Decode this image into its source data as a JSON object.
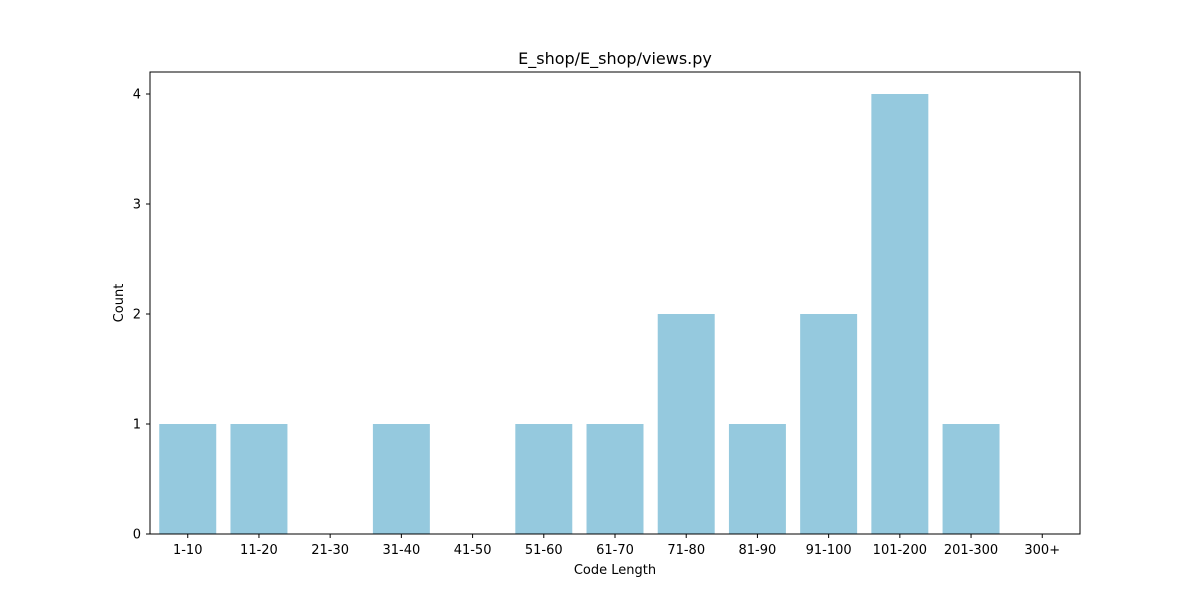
{
  "chart_data": {
    "type": "bar",
    "title": "E_shop/E_shop/views.py",
    "xlabel": "Code Length",
    "ylabel": "Count",
    "categories": [
      "1-10",
      "11-20",
      "21-30",
      "31-40",
      "41-50",
      "51-60",
      "61-70",
      "71-80",
      "81-90",
      "91-100",
      "101-200",
      "201-300",
      "300+"
    ],
    "values": [
      1,
      1,
      0,
      1,
      0,
      1,
      1,
      2,
      1,
      2,
      4,
      1,
      0
    ],
    "ylim": [
      0,
      4.2
    ],
    "yticks": [
      0,
      1,
      2,
      3,
      4
    ],
    "grid": false,
    "bar_color": "#95c9de"
  }
}
